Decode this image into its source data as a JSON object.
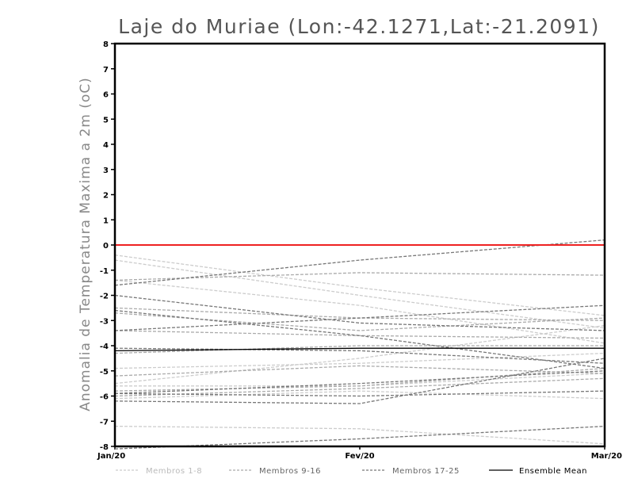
{
  "chart_data": {
    "type": "line",
    "title": "Laje do Muriae (Lon:-42.1271,Lat:-21.2091)",
    "xlabel": "",
    "ylabel": "Anomalia de Temperatura Maxima a 2m (oC)",
    "categories": [
      "Jan/20",
      "Fev/20",
      "Mar/20"
    ],
    "ylim": [
      -8,
      8
    ],
    "yticks": [
      "-8",
      "-7",
      "-6",
      "-5",
      "-4",
      "-3",
      "-2",
      "-1",
      "0",
      "1",
      "2",
      "3",
      "4",
      "5",
      "6",
      "7",
      "8"
    ],
    "reference_line": {
      "value": 0,
      "color": "#ee2222"
    },
    "legend": [
      {
        "label": "Membros 1-8",
        "color": "#cccccc",
        "dashed": true
      },
      {
        "label": "Membros 9-16",
        "color": "#aaaaaa",
        "dashed": true
      },
      {
        "label": "Membros 17-25",
        "color": "#777777",
        "dashed": true
      },
      {
        "label": "Ensemble Mean",
        "color": "#000000",
        "dashed": false
      }
    ],
    "series": [
      {
        "name": "Membros 1-8",
        "color": "#cccccc",
        "values": [
          -0.4,
          -1.7,
          -2.8
        ]
      },
      {
        "name": "Membros 1-8",
        "color": "#cccccc",
        "values": [
          -0.6,
          -2.0,
          -3.3
        ]
      },
      {
        "name": "Membros 1-8",
        "color": "#cccccc",
        "values": [
          -1.4,
          -2.4,
          -3.9
        ]
      },
      {
        "name": "Membros 1-8",
        "color": "#cccccc",
        "values": [
          -4.9,
          -4.7,
          -4.3
        ]
      },
      {
        "name": "Membros 1-8",
        "color": "#cccccc",
        "values": [
          -5.5,
          -4.5,
          -3.2
        ]
      },
      {
        "name": "Membros 1-8",
        "color": "#cccccc",
        "values": [
          -5.6,
          -5.6,
          -5.1
        ]
      },
      {
        "name": "Membros 1-8",
        "color": "#cccccc",
        "values": [
          -6.1,
          -5.8,
          -6.1
        ]
      },
      {
        "name": "Membros 1-8",
        "color": "#cccccc",
        "values": [
          -7.2,
          -7.3,
          -7.9
        ]
      },
      {
        "name": "Membros 9-16",
        "color": "#aaaaaa",
        "values": [
          -1.4,
          -1.1,
          -1.2
        ]
      },
      {
        "name": "Membros 9-16",
        "color": "#aaaaaa",
        "values": [
          -2.5,
          -2.9,
          -3.0
        ]
      },
      {
        "name": "Membros 9-16",
        "color": "#aaaaaa",
        "values": [
          -2.7,
          -3.4,
          -2.9
        ]
      },
      {
        "name": "Membros 9-16",
        "color": "#aaaaaa",
        "values": [
          -3.4,
          -3.6,
          -3.7
        ]
      },
      {
        "name": "Membros 9-16",
        "color": "#aaaaaa",
        "values": [
          -4.3,
          -4.0,
          -4.0
        ]
      },
      {
        "name": "Membros 9-16",
        "color": "#aaaaaa",
        "values": [
          -5.8,
          -5.6,
          -4.9
        ]
      },
      {
        "name": "Membros 9-16",
        "color": "#aaaaaa",
        "values": [
          -6.0,
          -5.7,
          -5.3
        ]
      },
      {
        "name": "Membros 9-16",
        "color": "#aaaaaa",
        "values": [
          -5.2,
          -4.8,
          -5.1
        ]
      },
      {
        "name": "Membros 17-25",
        "color": "#777777",
        "values": [
          -1.6,
          -0.6,
          0.2
        ]
      },
      {
        "name": "Membros 17-25",
        "color": "#777777",
        "values": [
          -2.0,
          -3.1,
          -3.4
        ]
      },
      {
        "name": "Membros 17-25",
        "color": "#777777",
        "values": [
          -2.6,
          -3.6,
          -4.9
        ]
      },
      {
        "name": "Membros 17-25",
        "color": "#777777",
        "values": [
          -3.4,
          -2.9,
          -2.4
        ]
      },
      {
        "name": "Membros 17-25",
        "color": "#777777",
        "values": [
          -4.1,
          -4.2,
          -4.7
        ]
      },
      {
        "name": "Membros 17-25",
        "color": "#777777",
        "values": [
          -5.9,
          -5.5,
          -5.0
        ]
      },
      {
        "name": "Membros 17-25",
        "color": "#777777",
        "values": [
          -5.9,
          -6.0,
          -5.8
        ]
      },
      {
        "name": "Membros 17-25",
        "color": "#777777",
        "values": [
          -6.2,
          -6.3,
          -4.5
        ]
      },
      {
        "name": "Membros 17-25",
        "color": "#777777",
        "values": [
          -8.1,
          -7.7,
          -7.2
        ]
      },
      {
        "name": "Ensemble Mean",
        "color": "#000000",
        "values": [
          -4.2,
          -4.1,
          -4.1
        ]
      }
    ]
  }
}
